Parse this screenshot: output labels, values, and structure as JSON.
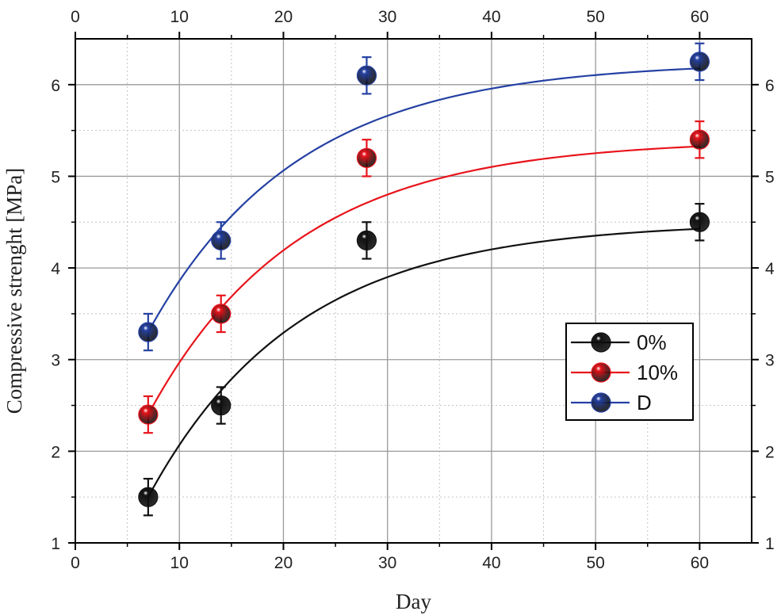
{
  "chart_data": {
    "type": "scatter",
    "title": "",
    "xlabel": "Day",
    "ylabel": "Compressive strenght [MPa]",
    "xlim": [
      0,
      65
    ],
    "ylim": [
      1,
      6.5
    ],
    "xticks": [
      "0",
      "10",
      "20",
      "30",
      "40",
      "50",
      "60"
    ],
    "yticks": [
      "1",
      "2",
      "3",
      "4",
      "5",
      "6"
    ],
    "grid": true,
    "legend_position": "center-right",
    "x": [
      7,
      14,
      28,
      60
    ],
    "series": [
      {
        "name": "0%",
        "color": "#111111",
        "values": [
          1.5,
          2.5,
          4.3,
          4.5
        ],
        "errors": [
          0.2,
          0.2,
          0.2,
          0.2
        ],
        "fit": {
          "a": 4.5,
          "k": 0.07,
          "x0": 7,
          "y0": 1.5
        }
      },
      {
        "name": "10%",
        "color": "#e8141b",
        "values": [
          2.4,
          3.5,
          5.2,
          5.4
        ],
        "errors": [
          0.2,
          0.2,
          0.2,
          0.2
        ],
        "fit": {
          "a": 5.4,
          "k": 0.07,
          "x0": 7,
          "y0": 2.4
        }
      },
      {
        "name": "D",
        "color": "#2541a3",
        "values": [
          3.3,
          4.3,
          6.1,
          6.25
        ],
        "errors": [
          0.2,
          0.2,
          0.2,
          0.2
        ],
        "fit": {
          "a": 6.25,
          "k": 0.07,
          "x0": 7,
          "y0": 3.3
        }
      }
    ]
  }
}
